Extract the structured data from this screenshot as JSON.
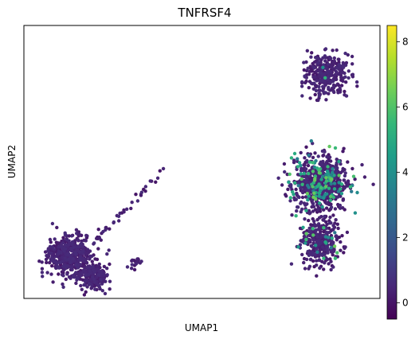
{
  "chart_data": {
    "type": "scatter",
    "title": "TNFRSF4",
    "xlabel": "UMAP1",
    "ylabel": "UMAP2",
    "show_x_ticks": false,
    "show_y_ticks": false,
    "grid": false,
    "colormap": "viridis",
    "colorbar": {
      "position": "right",
      "range": [
        -0.5,
        8.5
      ],
      "ticks": [
        "0",
        "2",
        "4",
        "6",
        "8"
      ],
      "tick_values": [
        0,
        2,
        4,
        6,
        8
      ]
    },
    "clusters": [
      {
        "label": "top cluster",
        "center": [
          7.6,
          8.2
        ],
        "spread": [
          0.85,
          0.75
        ],
        "count": 300,
        "high_fraction": 0.01
      },
      {
        "label": "right large cluster",
        "center": [
          7.3,
          3.8
        ],
        "spread": [
          1.1,
          1.0
        ],
        "count": 700,
        "high_fraction": 0.18
      },
      {
        "label": "right lower tail",
        "center": [
          7.3,
          1.4
        ],
        "spread": [
          0.75,
          0.9
        ],
        "count": 320,
        "high_fraction": 0.05
      },
      {
        "label": "left cluster",
        "center": [
          -3.6,
          0.8
        ],
        "spread": [
          0.95,
          0.75
        ],
        "count": 500,
        "high_fraction": 0.0
      },
      {
        "label": "left lower extension",
        "center": [
          -2.6,
          0.0
        ],
        "spread": [
          0.55,
          0.45
        ],
        "count": 200,
        "high_fraction": 0.0
      },
      {
        "label": "bridge arm",
        "center": [
          -1.0,
          2.3
        ],
        "spread": [
          0.15,
          0.15
        ],
        "count": 40,
        "high_fraction": 0.02
      },
      {
        "label": "isolated points",
        "center": [
          -0.8,
          0.5
        ],
        "spread": [
          0.25,
          0.2
        ],
        "count": 18,
        "high_fraction": 0.0
      }
    ],
    "x_range": [
      -5.6,
      9.9
    ],
    "y_range": [
      -0.9,
      10.2
    ]
  },
  "colors": {
    "viridis": [
      "#440154",
      "#482878",
      "#3e4989",
      "#31688e",
      "#26828e",
      "#1f9e89",
      "#35b779",
      "#6ece58",
      "#b5de2b",
      "#fde725"
    ],
    "point_base": "#440154",
    "frame": "#000000"
  }
}
